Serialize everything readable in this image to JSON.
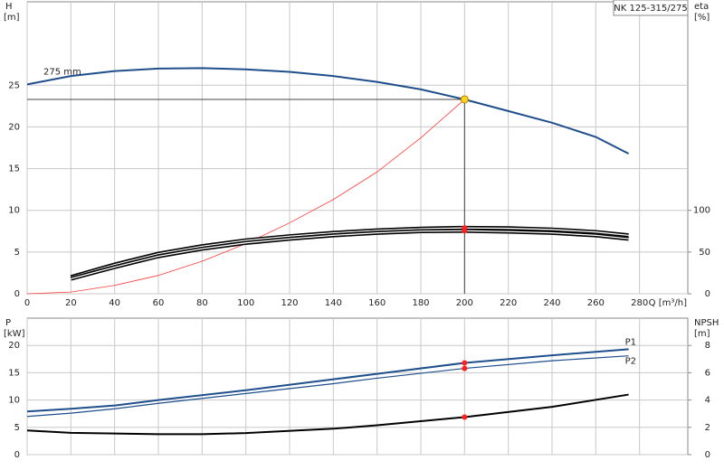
{
  "chart_data": [
    {
      "type": "line",
      "title": "NK 125-315/275",
      "xlabel": "Q [m³/h]",
      "ylabel": "H",
      "yunit": "[m]",
      "y2label": "eta",
      "y2unit": "[%]",
      "xlim": [
        0,
        300
      ],
      "xticks": [
        0,
        20,
        40,
        60,
        80,
        100,
        120,
        140,
        160,
        180,
        200,
        220,
        240,
        260,
        280
      ],
      "ylim": [
        0,
        35
      ],
      "yticks": [
        0,
        5,
        10,
        15,
        20,
        25
      ],
      "y2lim": [
        0,
        350
      ],
      "y2ticks": [
        0,
        50,
        100
      ],
      "grid": true,
      "series": [
        {
          "name": "275 mm",
          "color": "#1f4e8c",
          "x": [
            0,
            20,
            40,
            60,
            80,
            100,
            120,
            140,
            160,
            180,
            200,
            220,
            240,
            260,
            275
          ],
          "values": [
            25.1,
            26.1,
            26.7,
            27.0,
            27.05,
            26.9,
            26.6,
            26.1,
            25.4,
            24.5,
            23.3,
            21.9,
            20.5,
            18.8,
            16.8
          ]
        },
        {
          "color": "#ff3b3b",
          "x": [
            0,
            20,
            40,
            60,
            80,
            100,
            120,
            140,
            160,
            180,
            200
          ],
          "values": [
            0,
            0.2,
            1.0,
            2.2,
            3.9,
            6.0,
            8.5,
            11.3,
            14.6,
            18.7,
            23.3
          ]
        },
        {
          "color": "#000000",
          "axis": "y2",
          "x": [
            20,
            40,
            60,
            80,
            100,
            120,
            140,
            160,
            180,
            200,
            220,
            240,
            260,
            275
          ],
          "values": [
            20,
            35,
            48,
            57,
            64,
            69,
            73,
            76,
            78,
            79,
            78.5,
            77,
            74,
            70
          ]
        },
        {
          "color": "#000000",
          "axis": "y2",
          "x": [
            20,
            40,
            60,
            80,
            100,
            120,
            140,
            160,
            180,
            200,
            220,
            240,
            260,
            275
          ],
          "values": [
            18,
            32,
            45,
            54,
            61,
            66,
            70,
            73,
            75,
            75.5,
            74.5,
            73,
            70,
            66
          ]
        }
      ],
      "operating_point": {
        "x": 200,
        "y": 23.3,
        "color": "#ffd21f"
      },
      "marker_color": "#ff2020"
    },
    {
      "type": "line",
      "ylabel": "P",
      "yunit": "[kW]",
      "y2label": "NPSH",
      "y2unit": "[m]",
      "xlim": [
        0,
        300
      ],
      "ylim": [
        0,
        25
      ],
      "yticks": [
        0,
        5,
        10,
        15,
        20
      ],
      "y2lim": [
        0,
        10
      ],
      "y2ticks": [
        0,
        2,
        4,
        6,
        8
      ],
      "grid": true,
      "series": [
        {
          "name": "P1",
          "color": "#1f4e8c",
          "x": [
            0,
            20,
            40,
            60,
            100,
            140,
            160,
            200,
            240,
            275
          ],
          "values": [
            7.9,
            8.4,
            9.0,
            10.0,
            11.8,
            13.8,
            14.8,
            16.8,
            18.2,
            19.3
          ]
        },
        {
          "name": "P2",
          "color": "#1f4e8c",
          "x": [
            0,
            20,
            40,
            60,
            100,
            140,
            160,
            200,
            240,
            275
          ],
          "values": [
            7.0,
            7.6,
            8.4,
            9.4,
            11.2,
            13.0,
            14.0,
            15.8,
            17.2,
            18.1
          ]
        },
        {
          "color": "#000000",
          "axis": "y2",
          "x": [
            0,
            20,
            60,
            80,
            100,
            140,
            160,
            200,
            240,
            275
          ],
          "values": [
            1.77,
            1.6,
            1.5,
            1.5,
            1.58,
            1.9,
            2.15,
            2.75,
            3.5,
            4.4
          ]
        }
      ],
      "operating_x": 200,
      "marker_color": "#ff2020"
    }
  ]
}
